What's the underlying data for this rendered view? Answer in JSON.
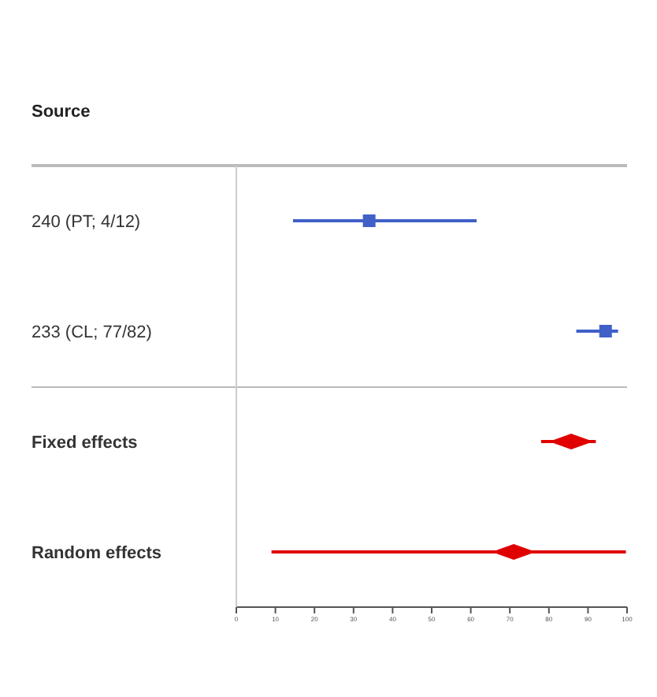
{
  "chart_data": [
    {
      "type": "scatter",
      "orientation": "horizontal",
      "ylabel": "Source",
      "categories": [
        "240 (PT; 4/12)",
        "233 (CL; 77/82)"
      ],
      "series": [
        {
          "type": "scatter",
          "marker": "square",
          "color": "#4060c8",
          "values": [
            34,
            94.5
          ],
          "errors": [
            [
              14.5,
              61.5
            ],
            [
              87,
              97.7
            ]
          ]
        }
      ],
      "xlim": [
        0,
        100
      ],
      "tick_labels": "y",
      "grid": false,
      "legend": false
    },
    {
      "type": "scatter",
      "orientation": "horizontal",
      "categories": [
        "Fixed effects",
        "Random effects"
      ],
      "series": [
        {
          "type": "scatter",
          "marker": "diamond",
          "color": "#e00000",
          "values": [
            85.7,
            71
          ],
          "errors": [
            [
              78,
              92
            ],
            [
              9,
              99.7
            ]
          ]
        }
      ],
      "xlim": [
        0,
        100
      ],
      "xticks": [
        0,
        10,
        20,
        30,
        40,
        50,
        60,
        70,
        80,
        90,
        100
      ],
      "grid": false,
      "legend": false
    }
  ]
}
